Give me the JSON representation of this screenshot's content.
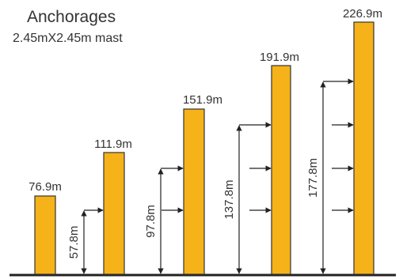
{
  "header": {
    "title": "Anchorages",
    "subtitle": "2.45mX2.45m mast"
  },
  "colors": {
    "mast_fill": "#F6B219",
    "mast_stroke": "#333333",
    "line": "#222222",
    "text": "#333333"
  },
  "masts": [
    {
      "height_label": "76.9m",
      "dimension_label": "",
      "anchor_count": 0
    },
    {
      "height_label": "111.9m",
      "dimension_label": "57.8m",
      "anchor_count": 1
    },
    {
      "height_label": "151.9m",
      "dimension_label": "97.8m",
      "anchor_count": 2
    },
    {
      "height_label": "191.9m",
      "dimension_label": "137.8m",
      "anchor_count": 3
    },
    {
      "height_label": "226.9m",
      "dimension_label": "177.8m",
      "anchor_count": 4
    }
  ]
}
